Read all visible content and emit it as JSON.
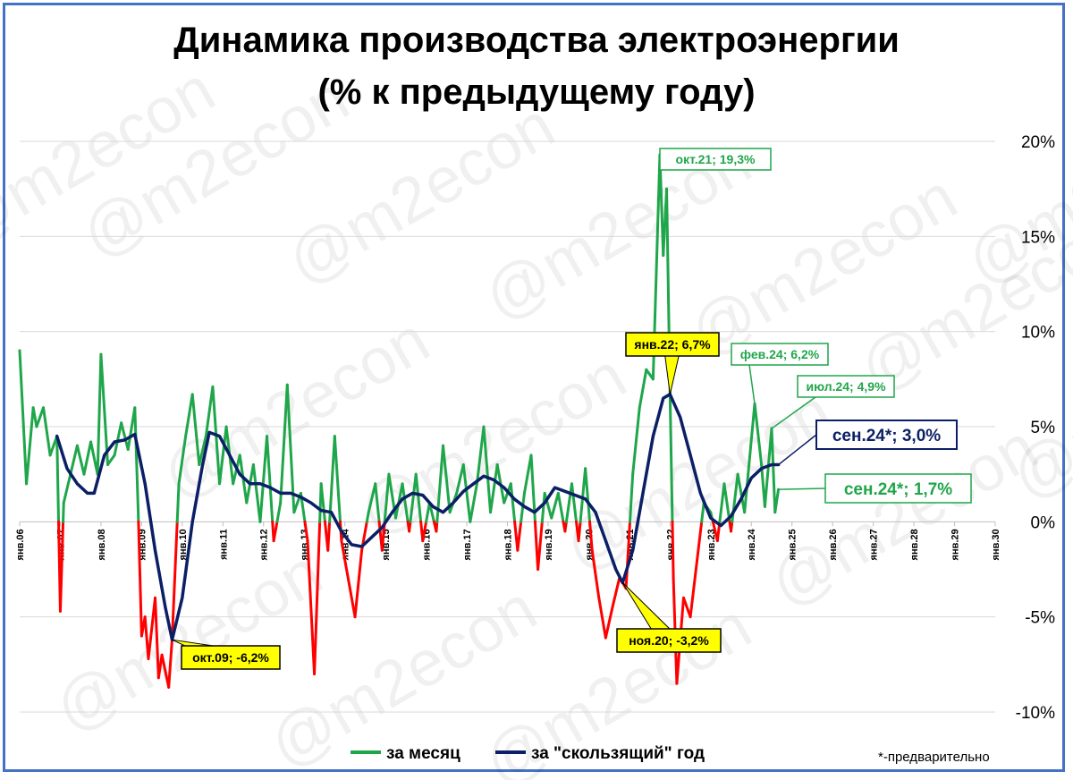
{
  "title_line1": "Динамика производства электроэнергии",
  "title_line2": "(% к предыдущему году)",
  "watermark": "@m2econ",
  "footnote": "*-предварительно",
  "colors": {
    "monthly_positive": "#1fa64a",
    "monthly_negative": "#ff0000",
    "rolling": "#0b1f66",
    "callout_yellow": "#ffff00",
    "grid": "#d9d9d9",
    "frame": "#4472c4"
  },
  "chart_data": {
    "type": "line",
    "title": "Динамика производства электроэнергии (% к предыдущему году)",
    "x_range": [
      "2006-01",
      "2030-01"
    ],
    "ylim": [
      -10,
      20
    ],
    "y_ticks": [
      "20%",
      "15%",
      "10%",
      "5%",
      "0%",
      "-5%",
      "-10%"
    ],
    "y_tick_values": [
      20,
      15,
      10,
      5,
      0,
      -5,
      -10
    ],
    "x_tick_labels": [
      "янв.06",
      "янв.07",
      "янв.08",
      "янв.09",
      "янв.10",
      "янв.11",
      "янв.12",
      "янв.13",
      "янв.14",
      "янв.15",
      "янв.16",
      "янв.17",
      "янв.18",
      "янв.19",
      "янв.20",
      "янв.21",
      "янв.22",
      "янв.23",
      "янв.24",
      "янв.25",
      "янв.26",
      "янв.27",
      "янв.28",
      "янв.29",
      "янв.30"
    ],
    "y_axis_position": "right",
    "grid": true,
    "legend_position": "bottom",
    "series": [
      {
        "name": "за месяц",
        "key": "monthly",
        "points": [
          [
            "2006-01",
            9.0
          ],
          [
            "2006-03",
            2.0
          ],
          [
            "2006-05",
            6.0
          ],
          [
            "2006-06",
            5.0
          ],
          [
            "2006-08",
            6.0
          ],
          [
            "2006-10",
            3.5
          ],
          [
            "2006-12",
            4.5
          ],
          [
            "2007-01",
            -4.7
          ],
          [
            "2007-02",
            1.0
          ],
          [
            "2007-04",
            2.5
          ],
          [
            "2007-06",
            4.0
          ],
          [
            "2007-08",
            2.5
          ],
          [
            "2007-10",
            4.2
          ],
          [
            "2007-12",
            2.5
          ],
          [
            "2008-01",
            8.8
          ],
          [
            "2008-03",
            3.0
          ],
          [
            "2008-05",
            3.5
          ],
          [
            "2008-07",
            5.2
          ],
          [
            "2008-09",
            3.8
          ],
          [
            "2008-11",
            6.0
          ],
          [
            "2008-12",
            0.5
          ],
          [
            "2009-01",
            -6.0
          ],
          [
            "2009-02",
            -5.0
          ],
          [
            "2009-03",
            -7.2
          ],
          [
            "2009-05",
            -4.0
          ],
          [
            "2009-06",
            -8.2
          ],
          [
            "2009-07",
            -7.0
          ],
          [
            "2009-09",
            -8.7
          ],
          [
            "2009-10",
            -6.2
          ],
          [
            "2009-12",
            2.0
          ],
          [
            "2010-02",
            4.5
          ],
          [
            "2010-04",
            6.7
          ],
          [
            "2010-06",
            3.0
          ],
          [
            "2010-08",
            4.5
          ],
          [
            "2010-10",
            7.1
          ],
          [
            "2010-12",
            2.0
          ],
          [
            "2011-02",
            5.0
          ],
          [
            "2011-04",
            2.0
          ],
          [
            "2011-06",
            3.5
          ],
          [
            "2011-08",
            1.0
          ],
          [
            "2011-10",
            3.0
          ],
          [
            "2011-12",
            0.0
          ],
          [
            "2012-02",
            4.5
          ],
          [
            "2012-04",
            -1.0
          ],
          [
            "2012-06",
            1.0
          ],
          [
            "2012-08",
            7.2
          ],
          [
            "2012-10",
            0.5
          ],
          [
            "2012-12",
            1.5
          ],
          [
            "2013-02",
            -1.0
          ],
          [
            "2013-04",
            -8.0
          ],
          [
            "2013-06",
            2.0
          ],
          [
            "2013-08",
            -1.5
          ],
          [
            "2013-10",
            4.5
          ],
          [
            "2013-12",
            -1.0
          ],
          [
            "2014-02",
            -3.0
          ],
          [
            "2014-04",
            -5.0
          ],
          [
            "2014-06",
            -1.5
          ],
          [
            "2014-08",
            0.5
          ],
          [
            "2014-10",
            2.0
          ],
          [
            "2014-12",
            -1.5
          ],
          [
            "2015-02",
            2.5
          ],
          [
            "2015-04",
            0.2
          ],
          [
            "2015-06",
            2.0
          ],
          [
            "2015-08",
            -0.5
          ],
          [
            "2015-10",
            2.5
          ],
          [
            "2015-12",
            -1.0
          ],
          [
            "2016-02",
            1.0
          ],
          [
            "2016-04",
            -0.5
          ],
          [
            "2016-06",
            4.0
          ],
          [
            "2016-08",
            0.5
          ],
          [
            "2016-10",
            1.5
          ],
          [
            "2016-12",
            3.0
          ],
          [
            "2017-02",
            0.0
          ],
          [
            "2017-04",
            2.0
          ],
          [
            "2017-06",
            5.0
          ],
          [
            "2017-08",
            0.5
          ],
          [
            "2017-10",
            3.0
          ],
          [
            "2017-12",
            1.0
          ],
          [
            "2018-02",
            2.0
          ],
          [
            "2018-04",
            -1.5
          ],
          [
            "2018-06",
            1.5
          ],
          [
            "2018-08",
            3.5
          ],
          [
            "2018-10",
            -2.5
          ],
          [
            "2018-12",
            1.5
          ],
          [
            "2019-02",
            0.2
          ],
          [
            "2019-04",
            1.5
          ],
          [
            "2019-06",
            -0.5
          ],
          [
            "2019-08",
            2.0
          ],
          [
            "2019-10",
            -1.0
          ],
          [
            "2019-12",
            2.8
          ],
          [
            "2020-02",
            -1.5
          ],
          [
            "2020-04",
            -4.0
          ],
          [
            "2020-06",
            -6.1
          ],
          [
            "2020-08",
            -4.5
          ],
          [
            "2020-10",
            -3.0
          ],
          [
            "2020-11",
            -3.2
          ],
          [
            "2020-12",
            -3.5
          ],
          [
            "2021-02",
            2.5
          ],
          [
            "2021-04",
            6.0
          ],
          [
            "2021-06",
            8.0
          ],
          [
            "2021-08",
            7.5
          ],
          [
            "2021-10",
            19.3
          ],
          [
            "2021-11",
            14.0
          ],
          [
            "2021-12",
            17.5
          ],
          [
            "2022-01",
            6.7
          ],
          [
            "2022-02",
            -3.0
          ],
          [
            "2022-03",
            -8.5
          ],
          [
            "2022-05",
            -4.0
          ],
          [
            "2022-07",
            -5.0
          ],
          [
            "2022-09",
            -2.0
          ],
          [
            "2022-11",
            1.0
          ],
          [
            "2023-01",
            0.5
          ],
          [
            "2023-03",
            -1.0
          ],
          [
            "2023-05",
            2.0
          ],
          [
            "2023-07",
            -0.5
          ],
          [
            "2023-09",
            2.5
          ],
          [
            "2023-11",
            0.5
          ],
          [
            "2024-02",
            6.2
          ],
          [
            "2024-04",
            3.0
          ],
          [
            "2024-05",
            0.8
          ],
          [
            "2024-07",
            4.9
          ],
          [
            "2024-08",
            0.5
          ],
          [
            "2024-09",
            1.7
          ]
        ]
      },
      {
        "name": "за \"скользящий\" год",
        "key": "rolling",
        "points": [
          [
            "2006-12",
            4.5
          ],
          [
            "2007-03",
            2.8
          ],
          [
            "2007-06",
            2.0
          ],
          [
            "2007-09",
            1.5
          ],
          [
            "2007-11",
            1.5
          ],
          [
            "2008-02",
            3.5
          ],
          [
            "2008-05",
            4.2
          ],
          [
            "2008-08",
            4.3
          ],
          [
            "2008-11",
            4.6
          ],
          [
            "2009-02",
            2.0
          ],
          [
            "2009-05",
            -1.5
          ],
          [
            "2009-08",
            -4.5
          ],
          [
            "2009-10",
            -6.2
          ],
          [
            "2010-01",
            -4.0
          ],
          [
            "2010-04",
            0.0
          ],
          [
            "2010-07",
            3.0
          ],
          [
            "2010-09",
            4.7
          ],
          [
            "2010-12",
            4.5
          ],
          [
            "2011-03",
            3.5
          ],
          [
            "2011-06",
            2.5
          ],
          [
            "2011-09",
            2.0
          ],
          [
            "2011-12",
            2.0
          ],
          [
            "2012-03",
            1.8
          ],
          [
            "2012-06",
            1.5
          ],
          [
            "2012-09",
            1.5
          ],
          [
            "2012-12",
            1.3
          ],
          [
            "2013-03",
            1.0
          ],
          [
            "2013-06",
            0.6
          ],
          [
            "2013-09",
            0.5
          ],
          [
            "2013-12",
            -0.5
          ],
          [
            "2014-03",
            -1.2
          ],
          [
            "2014-06",
            -1.3
          ],
          [
            "2014-09",
            -0.8
          ],
          [
            "2014-12",
            -0.3
          ],
          [
            "2015-03",
            0.5
          ],
          [
            "2015-06",
            1.2
          ],
          [
            "2015-09",
            1.5
          ],
          [
            "2015-12",
            1.4
          ],
          [
            "2016-03",
            0.8
          ],
          [
            "2016-06",
            0.5
          ],
          [
            "2016-09",
            1.0
          ],
          [
            "2016-12",
            1.6
          ],
          [
            "2017-03",
            2.0
          ],
          [
            "2017-06",
            2.4
          ],
          [
            "2017-09",
            2.2
          ],
          [
            "2017-12",
            1.8
          ],
          [
            "2018-03",
            1.2
          ],
          [
            "2018-06",
            0.8
          ],
          [
            "2018-09",
            0.5
          ],
          [
            "2018-12",
            1.0
          ],
          [
            "2019-03",
            1.8
          ],
          [
            "2019-06",
            1.6
          ],
          [
            "2019-09",
            1.4
          ],
          [
            "2019-12",
            1.2
          ],
          [
            "2020-03",
            0.5
          ],
          [
            "2020-06",
            -1.0
          ],
          [
            "2020-09",
            -2.5
          ],
          [
            "2020-11",
            -3.2
          ],
          [
            "2021-02",
            -1.5
          ],
          [
            "2021-05",
            1.5
          ],
          [
            "2021-08",
            4.5
          ],
          [
            "2021-11",
            6.5
          ],
          [
            "2022-01",
            6.7
          ],
          [
            "2022-04",
            5.5
          ],
          [
            "2022-07",
            3.5
          ],
          [
            "2022-10",
            1.5
          ],
          [
            "2023-01",
            0.2
          ],
          [
            "2023-04",
            -0.2
          ],
          [
            "2023-07",
            0.3
          ],
          [
            "2023-10",
            1.2
          ],
          [
            "2024-01",
            2.3
          ],
          [
            "2024-04",
            2.8
          ],
          [
            "2024-07",
            3.0
          ],
          [
            "2024-09",
            3.0
          ]
        ]
      }
    ],
    "annotations": [
      {
        "key": "oct21",
        "series": "monthly",
        "x": "2021-10",
        "y": 19.3,
        "text": "окт.21; 19,3%",
        "style": "green"
      },
      {
        "key": "jan22",
        "series": "rolling",
        "x": "2022-01",
        "y": 6.7,
        "text": "янв.22; 6,7%",
        "style": "yellow"
      },
      {
        "key": "feb24",
        "series": "monthly",
        "x": "2024-02",
        "y": 6.2,
        "text": "фев.24; 6,2%",
        "style": "green"
      },
      {
        "key": "jul24",
        "series": "monthly",
        "x": "2024-07",
        "y": 4.9,
        "text": "июл.24; 4,9%",
        "style": "green"
      },
      {
        "key": "sep24r",
        "series": "rolling",
        "x": "2024-09",
        "y": 3.0,
        "text": "сен.24*; 3,0%",
        "style": "navy"
      },
      {
        "key": "sep24m",
        "series": "monthly",
        "x": "2024-09",
        "y": 1.7,
        "text": "сен.24*; 1,7%",
        "style": "green"
      },
      {
        "key": "oct09",
        "series": "rolling",
        "x": "2009-10",
        "y": -6.2,
        "text": "окт.09; -6,2%",
        "style": "yellow"
      },
      {
        "key": "nov20",
        "series": "rolling",
        "x": "2020-11",
        "y": -3.2,
        "text": "ноя.20; -3,2%",
        "style": "yellow"
      }
    ]
  }
}
